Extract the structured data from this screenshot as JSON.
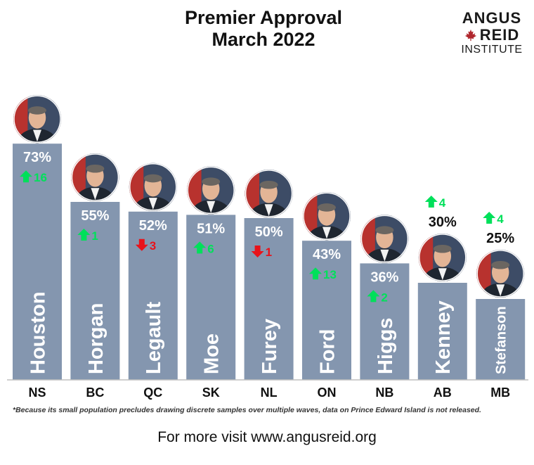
{
  "title_line1": "Premier Approval",
  "title_line2": "March 2022",
  "logo": {
    "line1": "ANGUS",
    "line2": "REID",
    "line3": "INSTITUTE"
  },
  "footnote": "*Because its small population precludes drawing discrete samples over multiple waves, data on Prince Edward Island is not released.",
  "footer": "For more visit www.angusreid.org",
  "colors": {
    "bar": "#8496AF",
    "up": "#00E05A",
    "down": "#E8131B",
    "axis": "#BFBFBF"
  },
  "chart_data": {
    "type": "bar",
    "title": "Premier Approval March 2022",
    "categories": [
      "NS",
      "BC",
      "QC",
      "SK",
      "NL",
      "ON",
      "NB",
      "AB",
      "MB"
    ],
    "premiers": [
      "Houston",
      "Horgan",
      "Legault",
      "Moe",
      "Furey",
      "Ford",
      "Higgs",
      "Kenney",
      "Stefanson"
    ],
    "values": [
      73,
      55,
      52,
      51,
      50,
      43,
      36,
      30,
      25
    ],
    "value_labels": [
      "73%",
      "55%",
      "52%",
      "51%",
      "50%",
      "43%",
      "36%",
      "30%",
      "25%"
    ],
    "change_direction": [
      "up",
      "up",
      "down",
      "up",
      "down",
      "up",
      "up",
      "up",
      "up"
    ],
    "change_values": [
      16,
      1,
      3,
      6,
      1,
      13,
      2,
      4,
      4
    ],
    "ylim": [
      0,
      80
    ]
  }
}
